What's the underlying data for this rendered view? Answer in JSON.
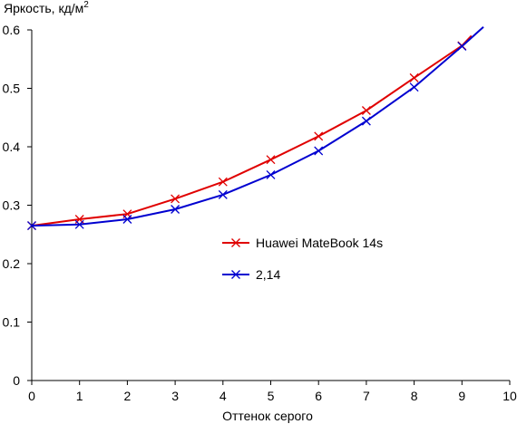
{
  "chart_data": {
    "type": "line",
    "title": "",
    "ylabel": "Яркость, кд/м",
    "ylabel_superscript": "2",
    "xlabel": "Оттенок серого",
    "xlim": [
      0,
      10
    ],
    "ylim": [
      0,
      0.6
    ],
    "x_ticks": [
      "0",
      "1",
      "2",
      "3",
      "4",
      "5",
      "6",
      "7",
      "8",
      "9",
      "10"
    ],
    "y_ticks": [
      "0",
      "0.1",
      "0.2",
      "0.3",
      "0.4",
      "0.5",
      "0.6"
    ],
    "grid": false,
    "legend_position": "middle-right",
    "marker": "x",
    "series": [
      {
        "name": "Huawei MateBook 14s",
        "color": "#e00000",
        "x": [
          0,
          1,
          2,
          3,
          4,
          5,
          6,
          7,
          8,
          9
        ],
        "y": [
          0.265,
          0.276,
          0.285,
          0.311,
          0.34,
          0.378,
          0.418,
          0.462,
          0.518,
          0.573
        ],
        "curve_tail": {
          "x": 9.2,
          "y": 0.59
        }
      },
      {
        "name": "2,14",
        "color": "#0000d0",
        "x": [
          0,
          1,
          2,
          3,
          4,
          5,
          6,
          7,
          8,
          9
        ],
        "y": [
          0.265,
          0.267,
          0.276,
          0.293,
          0.318,
          0.352,
          0.393,
          0.444,
          0.502,
          0.572
        ],
        "curve_tail": {
          "x": 9.45,
          "y": 0.605
        }
      }
    ]
  }
}
